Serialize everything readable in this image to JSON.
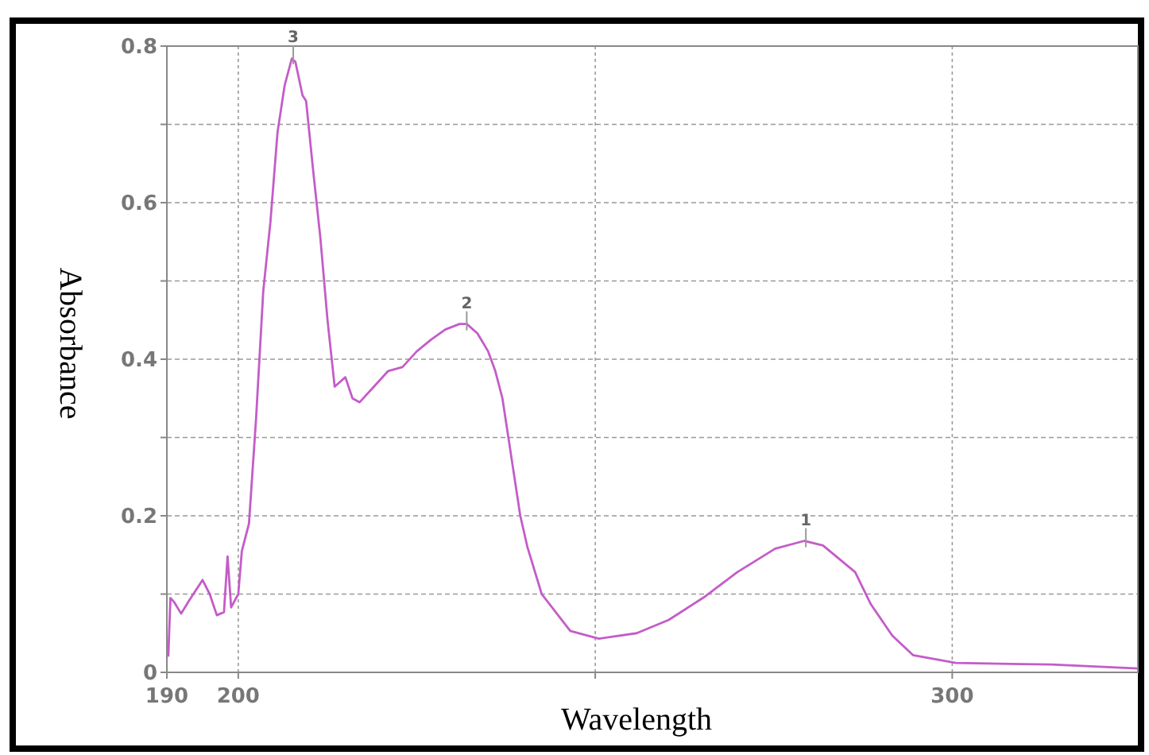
{
  "chart_data": {
    "type": "line",
    "xlabel": "Wavelength",
    "ylabel": "Absorbance",
    "xlim": [
      190,
      326
    ],
    "ylim": [
      0,
      0.8
    ],
    "xticks": [
      190,
      200,
      {
        "value": 250,
        "label": null
      },
      300
    ],
    "yticks": [
      0,
      {
        "value": 0.1,
        "label": null
      },
      0.2,
      {
        "value": 0.3,
        "label": null
      },
      0.4,
      {
        "value": 0.5,
        "label": null
      },
      0.6,
      {
        "value": 0.7,
        "label": null
      },
      0.8
    ],
    "grid": true,
    "line_style": "solid",
    "marker": "none",
    "annotations": [
      {
        "text": "3",
        "x": 207.7,
        "y": 0.785
      },
      {
        "text": "2",
        "x": 232,
        "y": 0.445
      },
      {
        "text": "1",
        "x": 279.5,
        "y": 0.168
      }
    ],
    "series": [
      {
        "color": "#c45cc8",
        "x": [
          190.2,
          190.5,
          191,
          192,
          193,
          195,
          196,
          197,
          198,
          198.5,
          199,
          200,
          200.5,
          201.5,
          202.5,
          203.5,
          204.5,
          205.5,
          206.5,
          207.5,
          208,
          209,
          209.5,
          210.5,
          211.5,
          212.5,
          213.5,
          215,
          216,
          217,
          219,
          221,
          223,
          225,
          227,
          229,
          231,
          232,
          233.5,
          235,
          236,
          237,
          238,
          239.5,
          240.5,
          242.5,
          246.5,
          250.5,
          255.8,
          260.3,
          265.4,
          269.9,
          275.2,
          279.3,
          281.9,
          286.4,
          288.6,
          291.6,
          294.5,
          300.5,
          313.9,
          326
        ],
        "values": [
          0.02,
          0.095,
          0.09,
          0.075,
          0.09,
          0.118,
          0.1,
          0.073,
          0.077,
          0.148,
          0.083,
          0.1,
          0.155,
          0.19,
          0.325,
          0.487,
          0.575,
          0.69,
          0.75,
          0.784,
          0.78,
          0.737,
          0.73,
          0.64,
          0.555,
          0.45,
          0.365,
          0.377,
          0.35,
          0.345,
          0.365,
          0.385,
          0.39,
          0.41,
          0.425,
          0.438,
          0.445,
          0.445,
          0.433,
          0.41,
          0.385,
          0.35,
          0.29,
          0.2,
          0.16,
          0.1,
          0.053,
          0.043,
          0.05,
          0.067,
          0.097,
          0.128,
          0.158,
          0.168,
          0.162,
          0.128,
          0.087,
          0.047,
          0.022,
          0.012,
          0.01,
          0.005
        ]
      }
    ]
  }
}
